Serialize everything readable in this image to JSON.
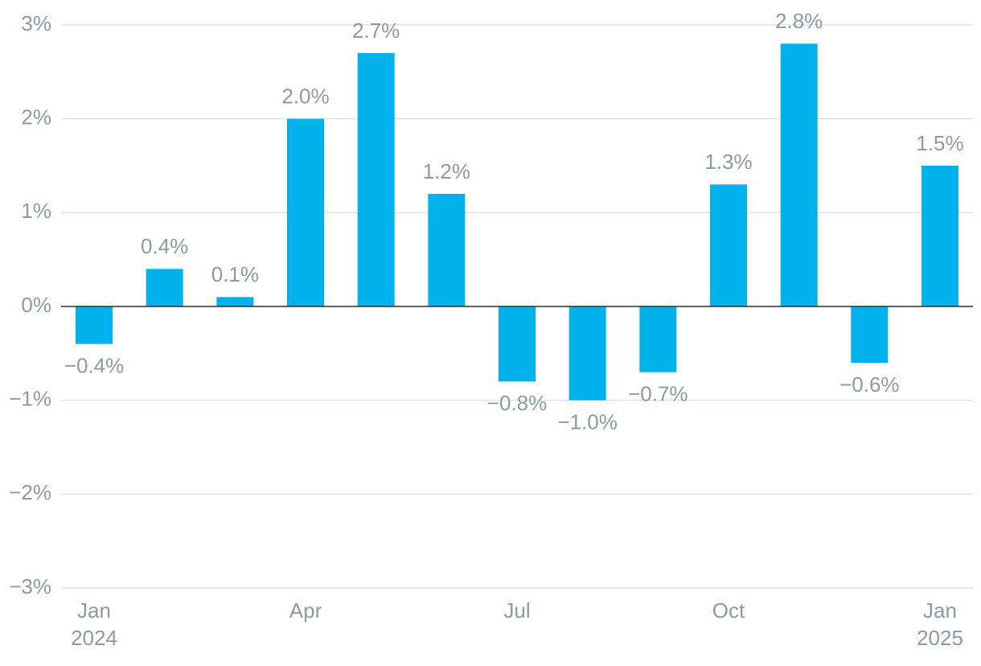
{
  "chart_data": {
    "type": "bar",
    "categories": [
      "Jan\n2024",
      null,
      null,
      "Apr",
      null,
      null,
      "Jul",
      null,
      null,
      "Oct",
      null,
      null,
      "Jan\n2025"
    ],
    "values": [
      -0.4,
      0.4,
      0.1,
      2.0,
      2.7,
      1.2,
      -0.8,
      -1.0,
      -0.7,
      1.3,
      2.8,
      -0.6,
      1.5
    ],
    "value_labels": [
      "−0.4%",
      "0.4%",
      "0.1%",
      "2.0%",
      "2.7%",
      "1.2%",
      "−0.8%",
      "−1.0%",
      "−0.7%",
      "1.3%",
      "2.8%",
      "−0.6%",
      "1.5%"
    ],
    "color": "#00b2ec",
    "ylim": [
      -3,
      3
    ],
    "yticks": [
      {
        "value": -3,
        "label": "−3%"
      },
      {
        "value": -2,
        "label": "−2%"
      },
      {
        "value": -1,
        "label": "−1%"
      },
      {
        "value": 0,
        "label": "0%"
      },
      {
        "value": 1,
        "label": "1%"
      },
      {
        "value": 2,
        "label": "2%"
      },
      {
        "value": 3,
        "label": "3%"
      }
    ],
    "grid": true
  }
}
